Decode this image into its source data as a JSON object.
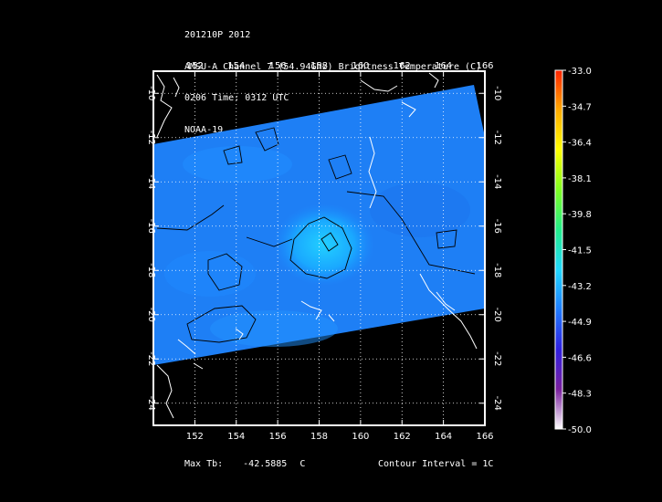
{
  "header": {
    "line1": "201210P 2012",
    "line2": "AMSU-A Channel 7 (54.94GHz) Brightness Temperature (C)",
    "line3": "0206 Time: 0312 UTC",
    "line4": "NOAA-19"
  },
  "map": {
    "lon_labels": [
      "152",
      "154",
      "156",
      "158",
      "160",
      "162",
      "164",
      "166"
    ],
    "lat_labels": [
      "-10",
      "-12",
      "-14",
      "-16",
      "-18",
      "-20",
      "-22",
      "-24"
    ],
    "lon_range": [
      150,
      166
    ],
    "lat_range": [
      -9,
      -25
    ],
    "grid": true
  },
  "colorbar": {
    "labels": [
      "-33.0",
      "-34.7",
      "-36.4",
      "-38.1",
      "-39.8",
      "-41.5",
      "-43.2",
      "-44.9",
      "-46.6",
      "-48.3",
      "-50.0"
    ],
    "range": [
      -50.0,
      -33.0
    ],
    "colors": [
      "#ffffff",
      "#7a1f9e",
      "#3020e0",
      "#1f7cff",
      "#21d8ff",
      "#23ee8a",
      "#7fff22",
      "#ffff00",
      "#ffaa00",
      "#ff2200"
    ]
  },
  "footer": {
    "max_label": "Max Tb:",
    "max_value": "-42.5885",
    "max_unit": "C",
    "contour": "Contour Interval = 1C"
  },
  "field_color": "#1e82ff",
  "coast_color": "#ffffff"
}
